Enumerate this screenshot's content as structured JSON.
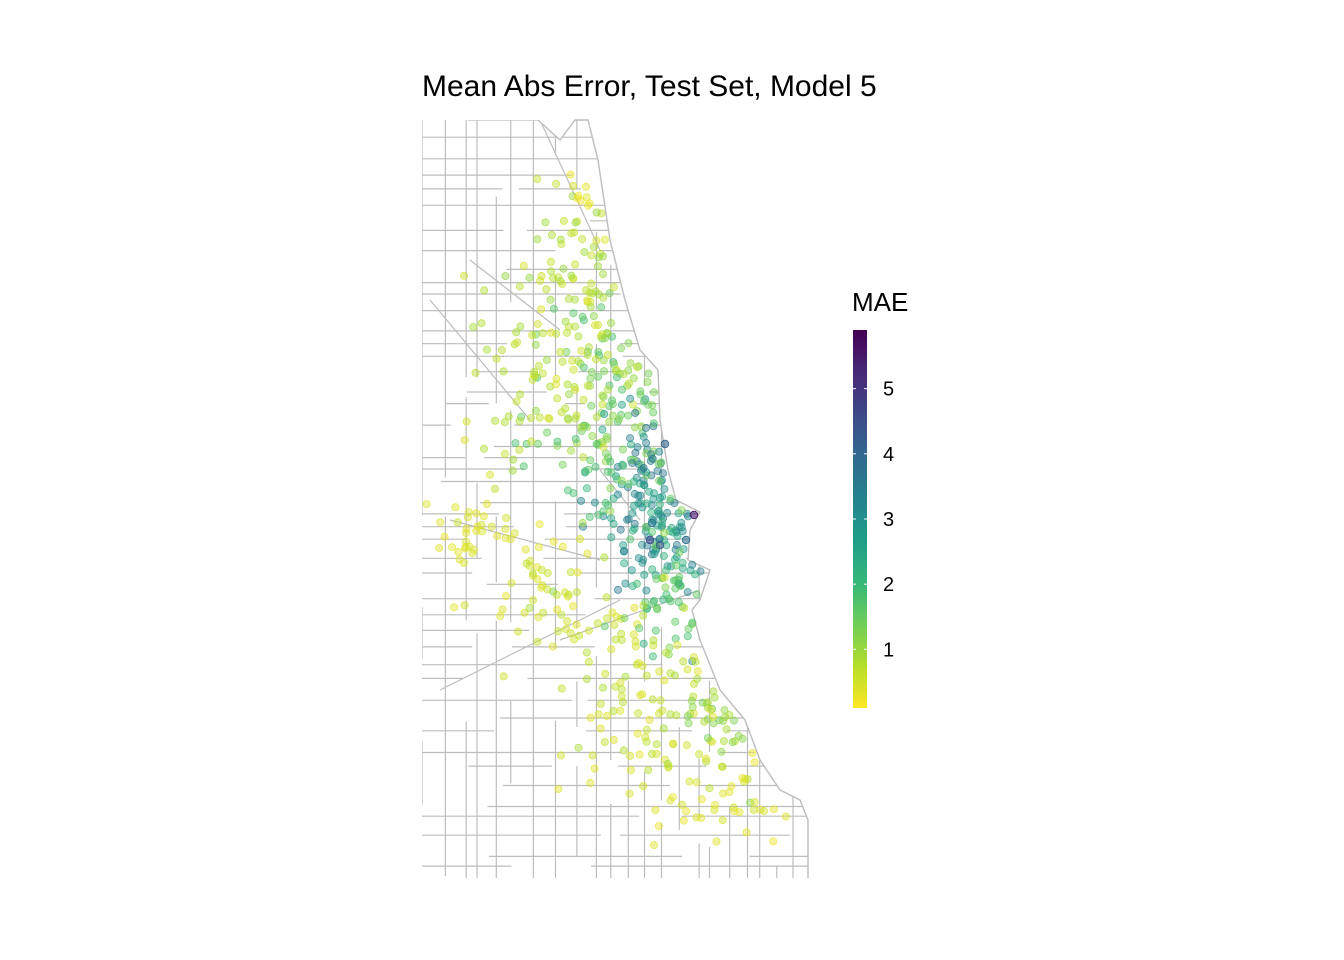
{
  "title": "Mean Abs Error, Test Set, Model 5",
  "legend": {
    "title": "MAE",
    "ticks": [
      1,
      2,
      3,
      4,
      5
    ],
    "range": [
      0.1,
      5.9
    ],
    "palette": "viridis (reversed: yellow = low, purple = high)",
    "colors": [
      "#FDE725",
      "#B5DE2B",
      "#6ECE58",
      "#35B779",
      "#1F9E89",
      "#26828E",
      "#31688E",
      "#3E4A89",
      "#482878",
      "#440154"
    ]
  },
  "map": {
    "city": "Chicago",
    "basemap": "census tract boundaries",
    "boundary_color": "#BDBDBD",
    "point_opacity": 0.45
  }
}
